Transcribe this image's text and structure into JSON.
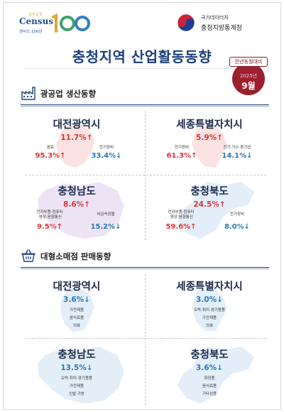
{
  "header": {
    "census_year": "2025",
    "census_word": "Census",
    "census_sub": "센서스 100년",
    "stat_line1": "국가데이터처",
    "stat_line2": "충청지방통계청",
    "title": "충청지역 산업활동동향",
    "badge_tag": "전년동월대비",
    "badge_year": "2025년",
    "badge_month": "9월"
  },
  "colors": {
    "up": "#d9363e",
    "down": "#2a7ab8",
    "navy": "#1e3f7a",
    "badge": "#9b1f2e"
  },
  "icons": {
    "mining": "factory-icon",
    "retail": "shopping-basket-icon"
  },
  "mining": {
    "title": "광공업 생산동향",
    "regions": [
      {
        "name": "대전광역시",
        "rate": "11.7%↑",
        "items": [
          {
            "label": "음료",
            "value": "95.3%↑",
            "dir": "up"
          },
          {
            "label": "전기장비",
            "value": "33.4%↓",
            "dir": "down"
          }
        ]
      },
      {
        "name": "세종특별자치시",
        "rate": "5.9%↑",
        "items": [
          {
            "label": "전기장비",
            "value": "61.3%↑",
            "dir": "up"
          },
          {
            "label": "전기·가스·증기업",
            "value": "14.1%↓",
            "dir": "down"
          }
        ]
      },
      {
        "name": "충청남도",
        "rate": "8.6%↑",
        "items": [
          {
            "label": "전자부품·컴퓨터\n·영상·음향통신",
            "value": "9.5%↑",
            "dir": "up"
          },
          {
            "label": "비금속광물",
            "value": "15.2%↓",
            "dir": "down"
          }
        ]
      },
      {
        "name": "충청북도",
        "rate": "24.5%↑",
        "items": [
          {
            "label": "전자부품·컴퓨터\n·영상·음향통신",
            "value": "59.6%↑",
            "dir": "up"
          },
          {
            "label": "전기장비",
            "value": "8.0%↓",
            "dir": "down"
          }
        ]
      }
    ]
  },
  "retail": {
    "title": "대형소매점 판매동향",
    "regions": [
      {
        "name": "대전광역시",
        "rate": "3.6%↓",
        "items": [
          "가전제품",
          "음식료품",
          "의복"
        ]
      },
      {
        "name": "세종특별자치시",
        "rate": "3.0%↓",
        "items": [
          "오락·취미·경기용품",
          "가전제품",
          "의복"
        ]
      },
      {
        "name": "충청남도",
        "rate": "13.5%↓",
        "items": [
          "오락·취미·경기용품",
          "가전제품",
          "신발·가방"
        ]
      },
      {
        "name": "충청북도",
        "rate": "3.6%↓",
        "items": [
          "화장품",
          "음식료품",
          "기타상품"
        ]
      }
    ]
  }
}
